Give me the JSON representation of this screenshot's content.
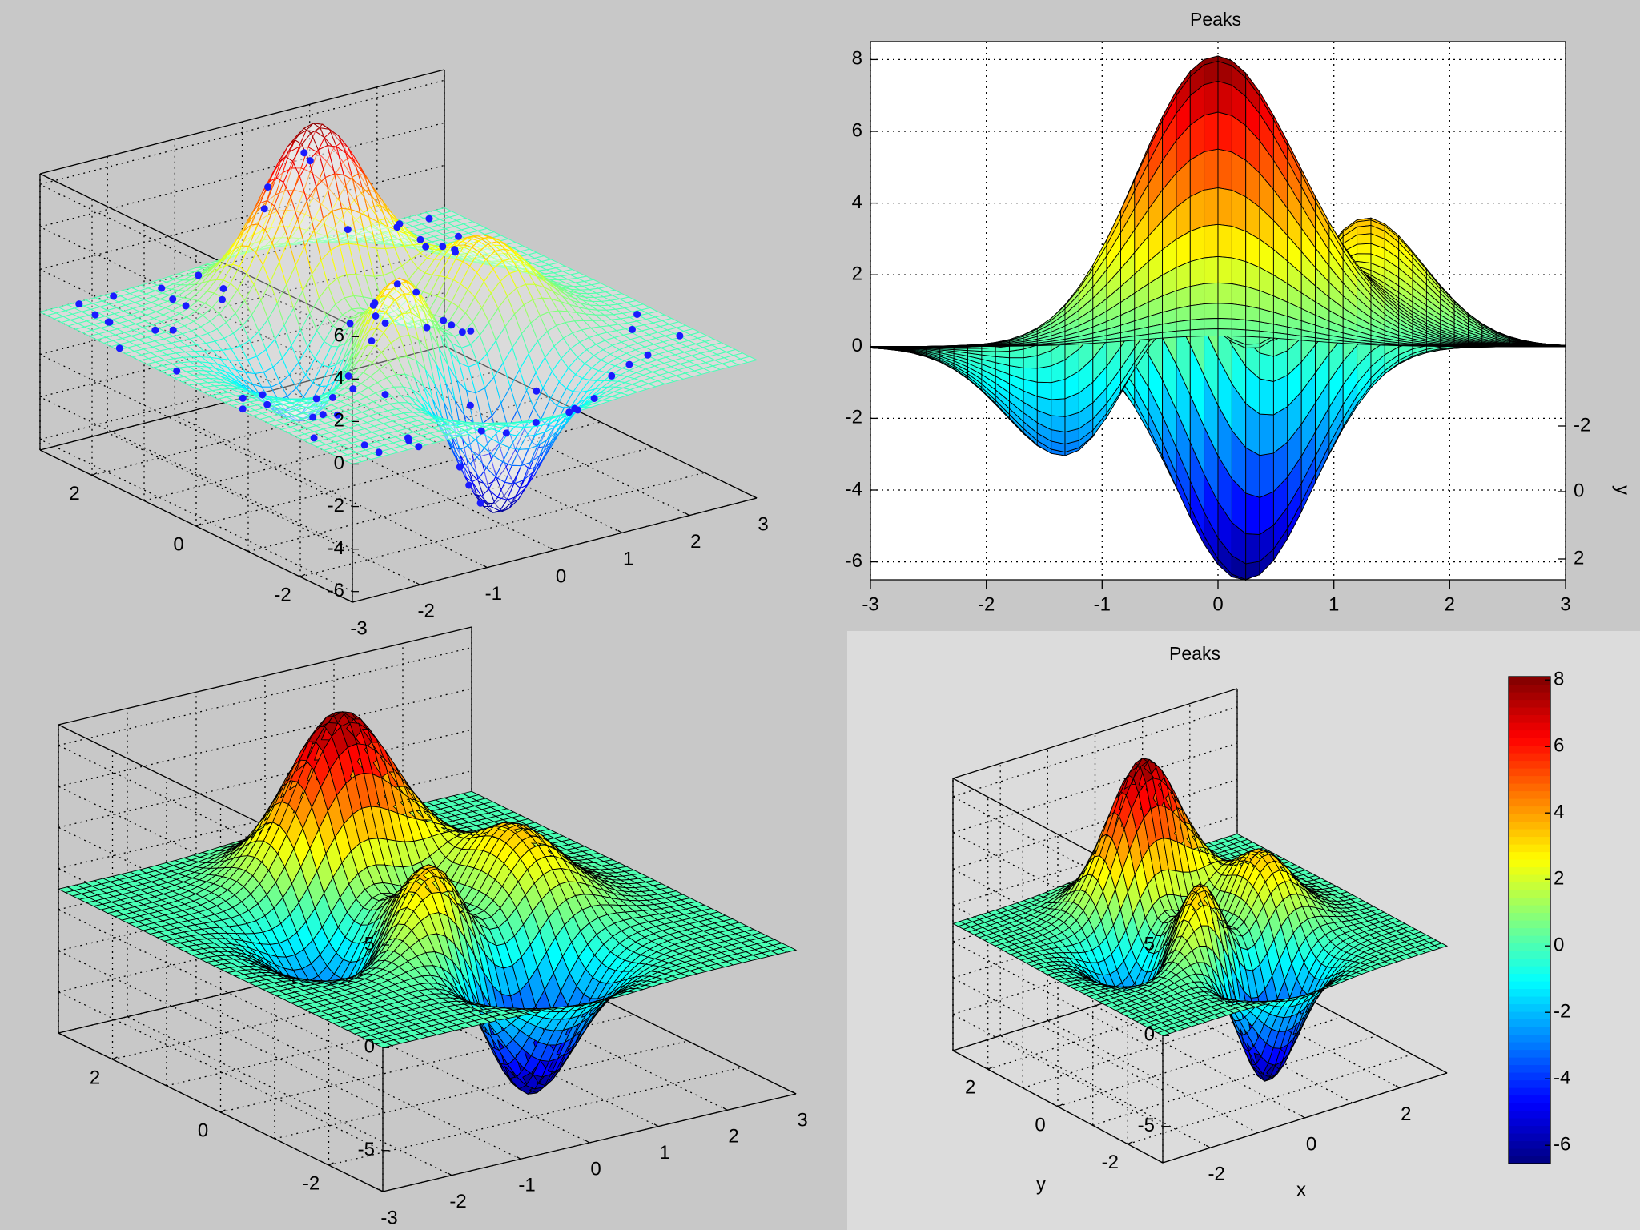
{
  "chart_data": [
    {
      "panel": "top-left",
      "type": "surface",
      "style": "mesh with scattered sample points",
      "title": "",
      "xlabel": "",
      "ylabel": "",
      "zlabel": "",
      "x_ticks": [
        -3,
        -2,
        -1,
        0,
        1,
        2,
        3
      ],
      "y_ticks": [
        -2,
        0,
        2
      ],
      "z_ticks": [
        -6,
        -4,
        -2,
        0,
        2,
        4,
        6
      ],
      "xlim": [
        -3,
        3
      ],
      "ylim": [
        -3,
        3
      ],
      "zlim": [
        -6.5,
        6.5
      ],
      "grid": true,
      "colormap": "jet",
      "function": "peaks",
      "peak_max": 8.1,
      "peak_min": -6.55,
      "scatter_color": "#1a1aff"
    },
    {
      "panel": "top-right",
      "type": "surface",
      "style": "faceted surface, side view (elevation 0)",
      "title": "Peaks",
      "xlabel": "",
      "ylabel": "y",
      "x_ticks": [
        -3,
        -2,
        -1,
        0,
        1,
        2,
        3
      ],
      "z_ticks": [
        -6,
        -4,
        -2,
        0,
        2,
        4,
        6,
        8
      ],
      "y_ticks_right": [
        -2,
        0,
        2
      ],
      "xlim": [
        -3,
        3
      ],
      "zlim": [
        -6.5,
        8.5
      ],
      "grid": true,
      "colormap": "jet",
      "function": "peaks",
      "peak_max": 8.1,
      "peak_min": -6.55
    },
    {
      "panel": "bottom-left",
      "type": "surface",
      "style": "faceted surface",
      "title": "",
      "xlabel": "",
      "ylabel": "",
      "x_ticks": [
        -3,
        -2,
        -1,
        0,
        1,
        2,
        3
      ],
      "y_ticks": [
        -2,
        0,
        2
      ],
      "z_ticks": [
        -5,
        0,
        5
      ],
      "xlim": [
        -3,
        3
      ],
      "ylim": [
        -3,
        3
      ],
      "zlim": [
        -7,
        8
      ],
      "grid": true,
      "colormap": "jet",
      "function": "peaks",
      "peak_max": 8.1,
      "peak_min": -6.55
    },
    {
      "panel": "bottom-right",
      "type": "surface",
      "style": "faceted surface with colorbar",
      "title": "Peaks",
      "xlabel": "x",
      "ylabel": "y",
      "x_ticks": [
        -2,
        0,
        2
      ],
      "y_ticks": [
        -2,
        0,
        2
      ],
      "z_ticks": [
        -5,
        0,
        5
      ],
      "xlim": [
        -3,
        3
      ],
      "ylim": [
        -3,
        3
      ],
      "zlim": [
        -7,
        8
      ],
      "grid": true,
      "colormap": "jet",
      "function": "peaks",
      "peak_max": 8.1,
      "peak_min": -6.55,
      "colorbar": {
        "ticks": [
          -6,
          -4,
          -2,
          0,
          2,
          4,
          6,
          8
        ],
        "range": [
          -6.55,
          8.1
        ]
      }
    }
  ]
}
